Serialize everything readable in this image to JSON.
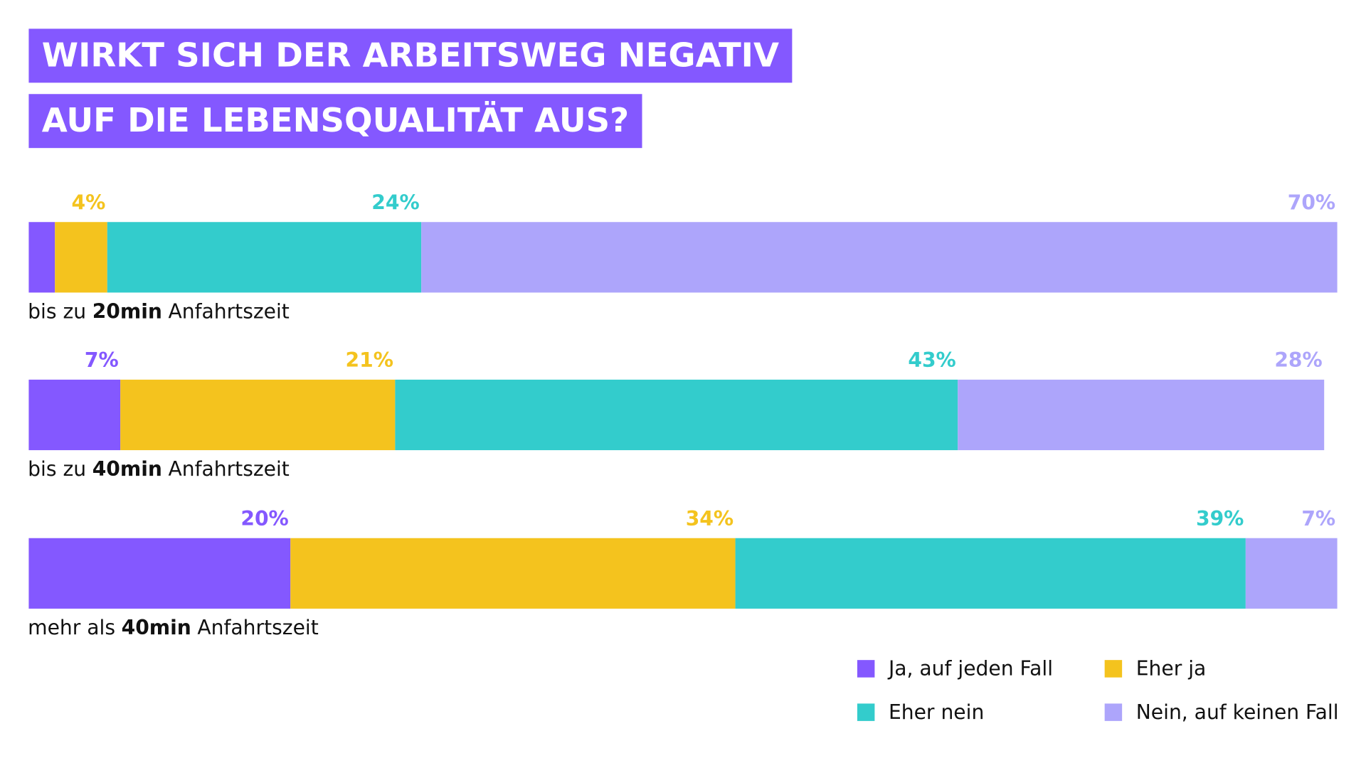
{
  "chart_data": {
    "type": "stacked-bar-horizontal",
    "title": [
      "WIRKT SICH DER ARBEITSWEG NEGATIV",
      "AUF DIE LEBENSQUALITÄT AUS?"
    ],
    "categories": [
      [
        "bis zu",
        "20min",
        "Anfahrtszeit"
      ],
      [
        "bis zu",
        "40min",
        "Anfahrtszeit"
      ],
      [
        "mehr als",
        "40min",
        "Anfahrtszeit"
      ]
    ],
    "xlim": [
      0,
      100
    ],
    "series": [
      {
        "name": "Ja, auf jeden Fall",
        "color": "#8458ff",
        "values": [
          2,
          7,
          20
        ],
        "value_labels": [
          null,
          "7%",
          "20%"
        ]
      },
      {
        "name": "Eher ja",
        "color": "#f4c31e",
        "values": [
          4,
          21,
          34
        ],
        "value_labels": [
          "4%",
          "21%",
          "34%"
        ]
      },
      {
        "name": "Eher nein",
        "color": "#33cccc",
        "values": [
          24,
          43,
          39
        ],
        "value_labels": [
          "24%",
          "43%",
          "39%"
        ]
      },
      {
        "name": "Nein, auf keinen Fall",
        "color": "#ada5fb",
        "values": [
          70,
          28,
          7
        ],
        "value_labels": [
          "70%",
          "28%",
          "7%"
        ]
      }
    ],
    "legend": "bottom-right"
  }
}
